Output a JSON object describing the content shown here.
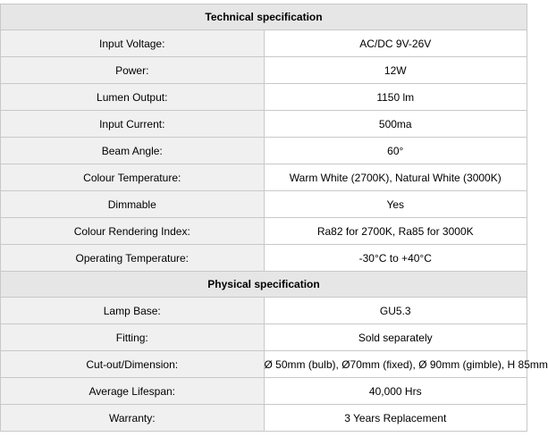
{
  "sections": [
    {
      "title": "Technical specification",
      "rows": [
        {
          "label": "Input Voltage:",
          "value": "AC/DC 9V-26V"
        },
        {
          "label": "Power:",
          "value": "12W"
        },
        {
          "label": "Lumen Output:",
          "value": "1150 lm"
        },
        {
          "label": "Input Current:",
          "value": "500ma"
        },
        {
          "label": "Beam Angle:",
          "value": "60°"
        },
        {
          "label": "Colour Temperature:",
          "value": "Warm White (2700K), Natural White (3000K)"
        },
        {
          "label": "Dimmable",
          "value": "Yes"
        },
        {
          "label": "Colour Rendering Index:",
          "value": "Ra82 for 2700K, Ra85 for 3000K"
        },
        {
          "label": "Operating Temperature:",
          "value": "-30°C to +40°C"
        }
      ]
    },
    {
      "title": "Physical specification",
      "rows": [
        {
          "label": "Lamp Base:",
          "value": "GU5.3"
        },
        {
          "label": "Fitting:",
          "value": "Sold separately"
        },
        {
          "label": "Cut-out/Dimension:",
          "value": "Ø 50mm (bulb), Ø70mm (fixed), Ø 90mm (gimble), H 85mm"
        },
        {
          "label": "Average Lifespan:",
          "value": "40,000 Hrs"
        },
        {
          "label": "Warranty:",
          "value": "3 Years Replacement"
        }
      ]
    }
  ]
}
